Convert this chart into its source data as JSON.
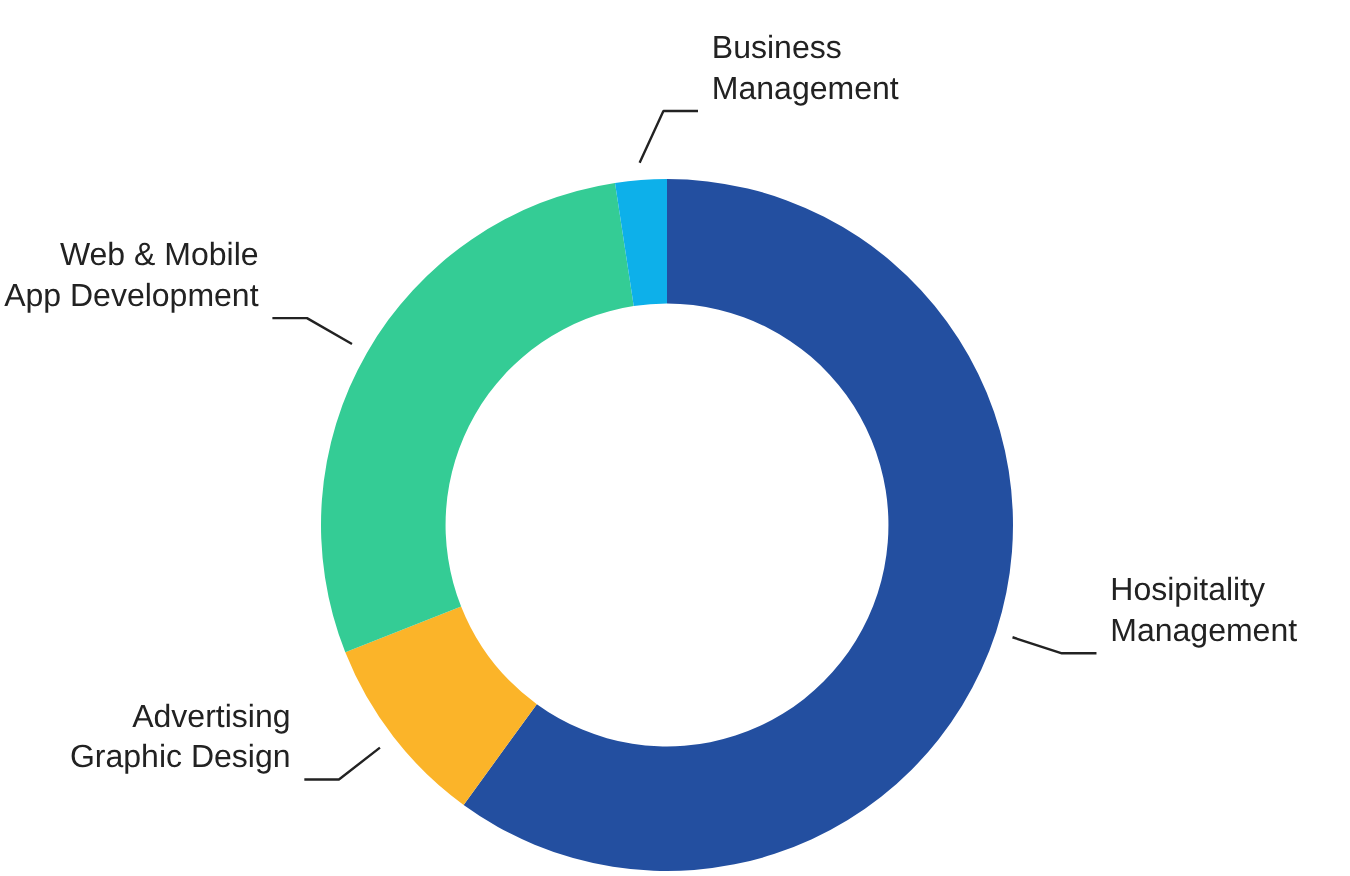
{
  "chart_data": {
    "type": "donut",
    "categories": [
      "Hosipitality\nManagement",
      "Advertising\nGraphic Design",
      "Web & Mobile\nApp Development",
      "Business\nManagement"
    ],
    "values": [
      60,
      9,
      28.6,
      2.4
    ],
    "colors": [
      "#234fa0",
      "#fbb429",
      "#34cc95",
      "#0db0ea"
    ],
    "legend": false
  }
}
